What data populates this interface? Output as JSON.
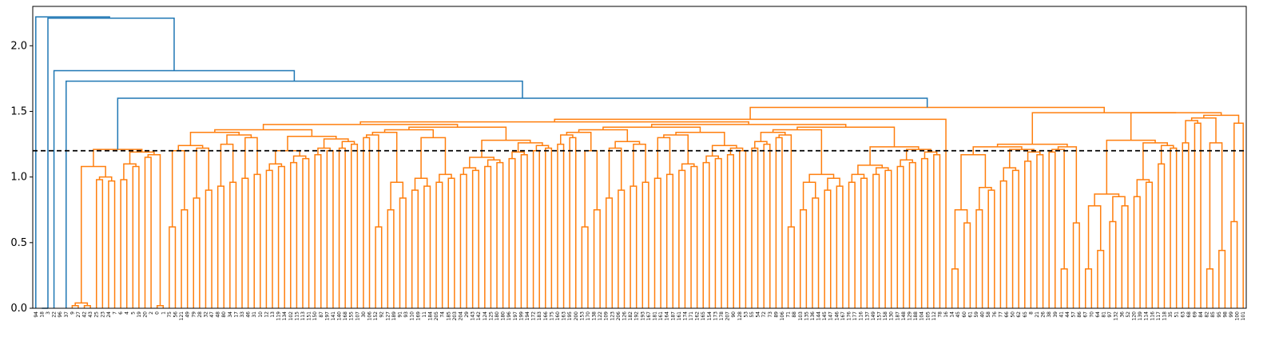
{
  "chart_data": {
    "type": "dendrogram",
    "title": "",
    "xlabel": "",
    "ylabel": "",
    "ylim": [
      0,
      2.3
    ],
    "yticks": [
      0.0,
      0.5,
      1.0,
      1.5,
      2.0
    ],
    "ytick_labels": [
      "0.0",
      "0.5",
      "1.0",
      "1.5",
      "2.0"
    ],
    "cut_threshold": 1.2,
    "colors": {
      "above_threshold": "#1f77b4",
      "cluster": "#ff7f0e",
      "threshold_line": "#000000",
      "axes": "#000000"
    },
    "leaf_labels": [
      "94",
      "18",
      "3",
      "22",
      "96",
      "37",
      "9",
      "27",
      "42",
      "43",
      "25",
      "23",
      "24",
      "7",
      "6",
      "4",
      "5",
      "19",
      "20",
      "2",
      "0",
      "1",
      "75",
      "56",
      "121",
      "49",
      "79",
      "28",
      "32",
      "47",
      "48",
      "80",
      "34",
      "17",
      "33",
      "46",
      "31",
      "10",
      "12",
      "13",
      "119",
      "134",
      "102",
      "115",
      "113",
      "151",
      "150",
      "87",
      "197",
      "141",
      "140",
      "168",
      "155",
      "107",
      "30",
      "106",
      "152",
      "92",
      "127",
      "189",
      "91",
      "93",
      "110",
      "169",
      "11",
      "184",
      "205",
      "74",
      "185",
      "203",
      "204",
      "29",
      "143",
      "142",
      "124",
      "125",
      "180",
      "180",
      "196",
      "197",
      "199",
      "194",
      "172",
      "183",
      "166",
      "175",
      "160",
      "163",
      "195",
      "200",
      "153",
      "170",
      "138",
      "122",
      "109",
      "123",
      "206",
      "126",
      "182",
      "192",
      "193",
      "167",
      "181",
      "161",
      "164",
      "187",
      "161",
      "174",
      "171",
      "162",
      "165",
      "154",
      "173",
      "178",
      "207",
      "90",
      "128",
      "53",
      "55",
      "54",
      "72",
      "73",
      "89",
      "106",
      "71",
      "88",
      "103",
      "135",
      "136",
      "144",
      "145",
      "147",
      "146",
      "167",
      "176",
      "177",
      "116",
      "137",
      "149",
      "157",
      "158",
      "130",
      "187",
      "148",
      "129",
      "188",
      "104",
      "105",
      "112",
      "78",
      "16",
      "14",
      "45",
      "60",
      "61",
      "59",
      "40",
      "58",
      "76",
      "77",
      "66",
      "50",
      "62",
      "65",
      "8",
      "21",
      "26",
      "38",
      "39",
      "41",
      "44",
      "57",
      "86",
      "67",
      "70",
      "64",
      "81",
      "97",
      "132",
      "36",
      "52",
      "120",
      "139",
      "114",
      "116",
      "117",
      "118",
      "35",
      "51",
      "63",
      "68",
      "69",
      "84",
      "82",
      "85",
      "95",
      "98",
      "99",
      "100",
      "101"
    ],
    "merge_heights_approx": {
      "root": 2.22,
      "upper_blue_links": [
        2.21,
        1.81,
        1.73,
        1.6
      ],
      "main_orange_cluster_top": 1.53,
      "subcluster_tops": [
        1.49,
        1.45,
        1.41,
        1.4,
        1.38,
        1.37,
        1.34,
        1.32,
        1.27,
        1.25,
        1.22,
        1.2
      ]
    },
    "notes": "Hierarchical clustering dendrogram with a horizontal dashed cut line at distance 1.2; upper links in blue, clusters in orange."
  }
}
